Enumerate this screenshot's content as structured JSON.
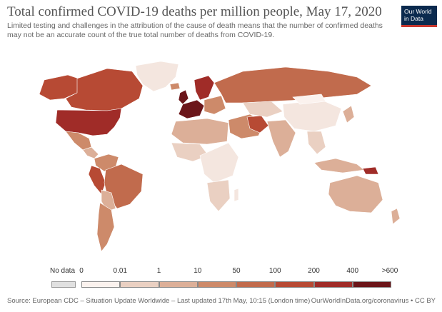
{
  "title": "Total confirmed COVID-19 deaths per million people, May 17, 2020",
  "subtitle": "Limited testing and challenges in the attribution of the cause of death means that the number of confirmed deaths may not be an accurate count of the true total number of deaths from COVID-19.",
  "logo": {
    "line1": "Our World",
    "line2": "in Data"
  },
  "legend": {
    "no_data_label": "No data",
    "labels": [
      "0",
      "0.01",
      "1",
      "10",
      "50",
      "100",
      "200",
      "400",
      ">600"
    ],
    "colors": [
      "#fbf2ee",
      "#ead0c2",
      "#dcaf98",
      "#cd8a6a",
      "#c16b4d",
      "#b74a34",
      "#a02c28",
      "#6b1519"
    ]
  },
  "footer": {
    "source": "Source: European CDC – Situation Update Worldwide – Last updated 17th May, 10:15 (London time)",
    "credit": "OurWorldInData.org/coronavirus • CC BY"
  },
  "colors": {
    "ocean": "#ffffff",
    "no_data": "#e0e0e0",
    "border": "#ffffff"
  }
}
